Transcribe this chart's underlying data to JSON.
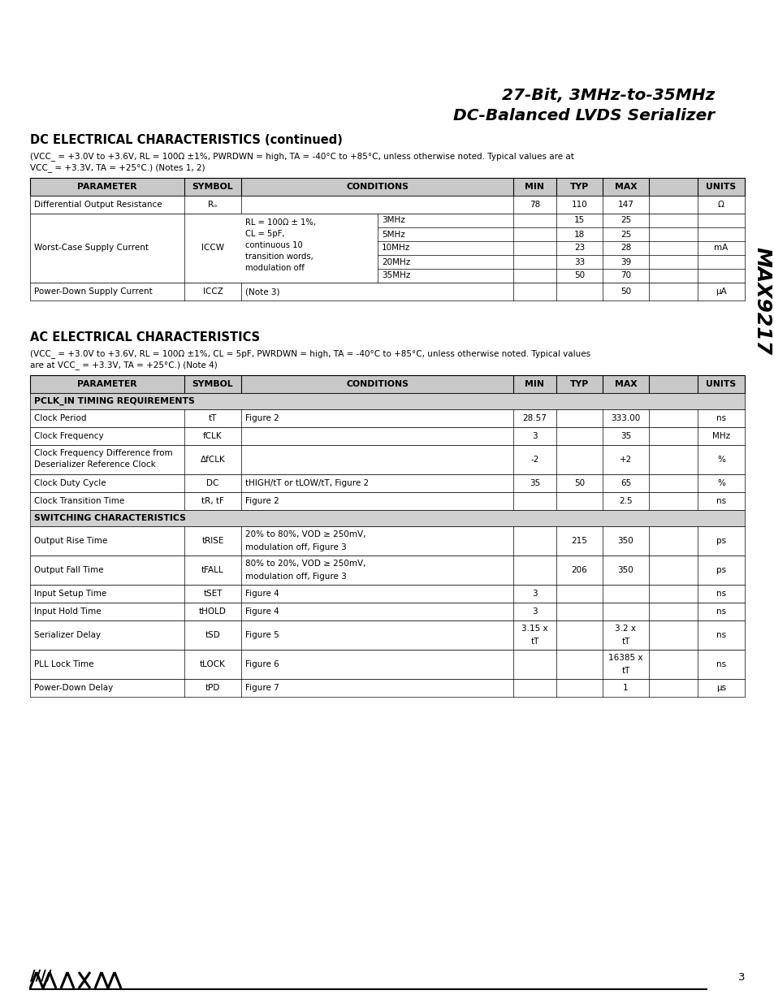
{
  "title_line1": "27-Bit, 3MHz-to-35MHz",
  "title_line2": "DC-Balanced LVDS Serializer",
  "dc_section_title": "DC ELECTRICAL CHARACTERISTICS (continued)",
  "dc_cond1": "(V",
  "dc_cond2": "CC_",
  "dc_cond3": " = +3.0V to +3.6V, R",
  "dc_cond4": "L",
  "dc_cond5": " = 100Ω ±1%, PWRDWN = high, T",
  "dc_cond6": "A",
  "dc_cond7": " = -40°C to +85°C, unless otherwise noted. Typical values are at",
  "dc_cond_line1": "(VCC_ = +3.0V to +3.6V, RL = 100Ω ±1%, PWRDWN = high, TA = -40°C to +85°C, unless otherwise noted. Typical values are at",
  "dc_cond_line2": "VCC_ = +3.3V, TA = +25°C.) (Notes 1, 2)",
  "ac_section_title": "AC ELECTRICAL CHARACTERISTICS",
  "ac_cond_line1": "(VCC_ = +3.0V to +3.6V, RL = 100Ω ±1%, CL = 5pF, PWRDWN = high, TA = -40°C to +85°C, unless otherwise noted. Typical values",
  "ac_cond_line2": "are at VCC_ = +3.3V, TA = +25°C.) (Note 4)",
  "side_text": "MAX9217",
  "page_number": "3",
  "bg_color": "#ffffff",
  "header_bg": "#c8c8c8",
  "section_bg": "#d0d0d0"
}
